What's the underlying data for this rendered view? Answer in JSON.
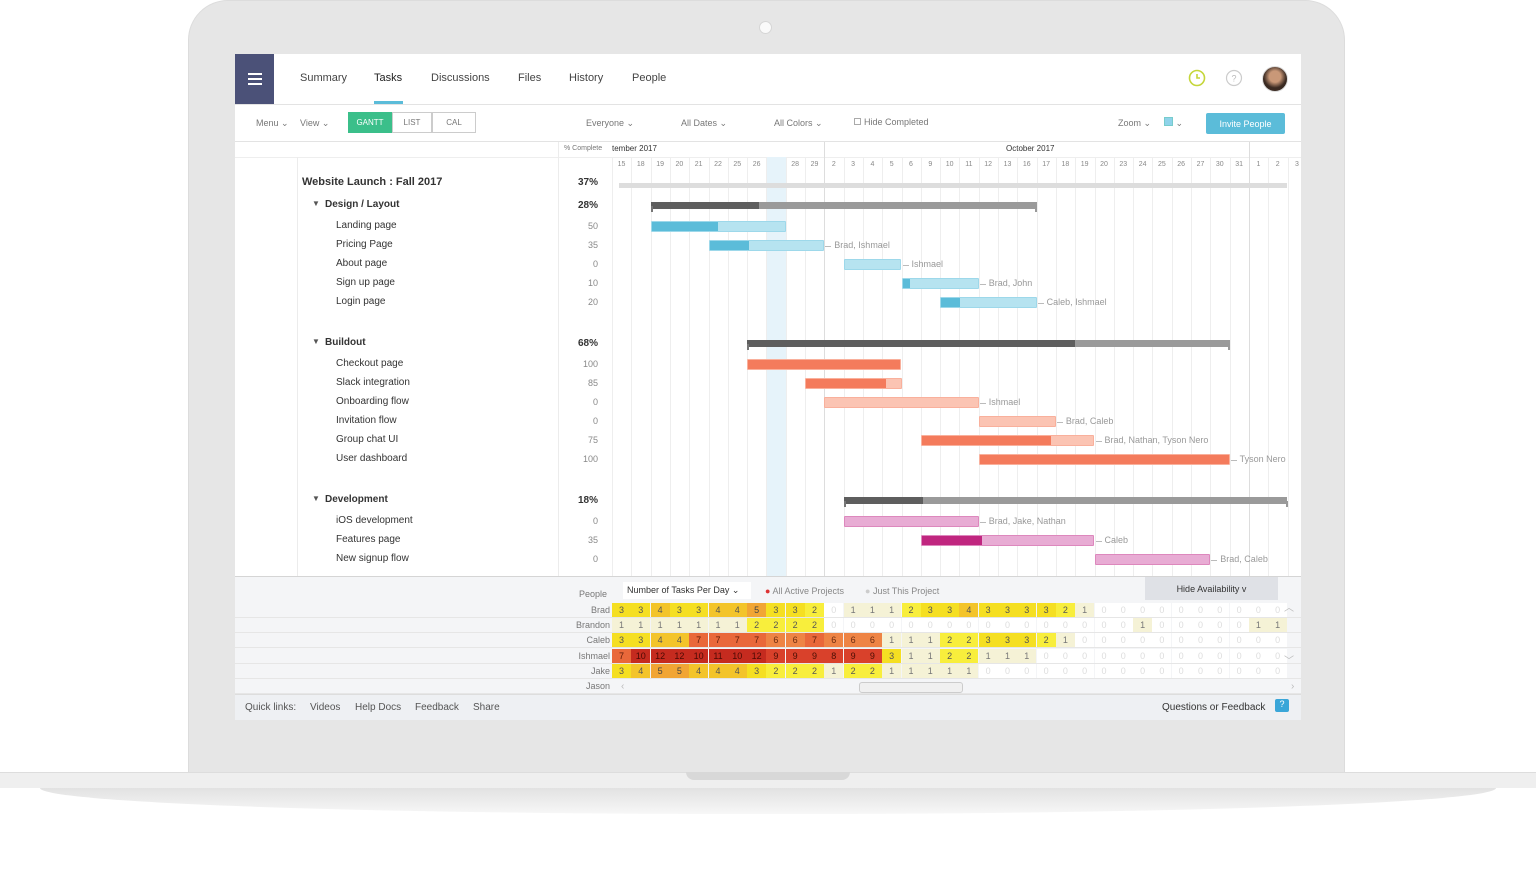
{
  "header": {
    "tabs": [
      {
        "label": "Summary"
      },
      {
        "label": "Tasks",
        "active": true
      },
      {
        "label": "Discussions"
      },
      {
        "label": "Files"
      },
      {
        "label": "History"
      },
      {
        "label": "People"
      }
    ],
    "icons": [
      "menu-icon",
      "clock-icon",
      "help-icon",
      "avatar"
    ]
  },
  "toolbar": {
    "menu": "Menu",
    "view": "View",
    "views": [
      "GANTT",
      "LIST",
      "CAL"
    ],
    "active_view": "GANTT",
    "everyone": "Everyone",
    "all_dates": "All Dates",
    "all_colors": "All Colors",
    "hide_completed": "Hide Completed",
    "zoom": "Zoom",
    "invite": "Invite People",
    "accent": "#3bbf8a",
    "invite_color": "#5bbcd9"
  },
  "timeline": {
    "pct_header": "% Complete",
    "months": [
      {
        "label": "tember 2017"
      },
      {
        "label": "October 2017"
      }
    ],
    "days": [
      "15",
      "18",
      "19",
      "20",
      "21",
      "22",
      "25",
      "26",
      "27",
      "28",
      "29",
      "2",
      "3",
      "4",
      "5",
      "6",
      "9",
      "10",
      "11",
      "12",
      "13",
      "16",
      "17",
      "18",
      "19",
      "20",
      "23",
      "24",
      "25",
      "26",
      "27",
      "30",
      "31",
      "1",
      "2",
      "3"
    ],
    "dates": [
      "2017-09-15",
      "2017-09-18",
      "2017-09-19",
      "2017-09-20",
      "2017-09-21",
      "2017-09-22",
      "2017-09-25",
      "2017-09-26",
      "2017-09-27",
      "2017-09-28",
      "2017-09-29",
      "2017-10-02",
      "2017-10-03",
      "2017-10-04",
      "2017-10-05",
      "2017-10-06",
      "2017-10-09",
      "2017-10-10",
      "2017-10-11",
      "2017-10-12",
      "2017-10-13",
      "2017-10-16",
      "2017-10-17",
      "2017-10-18",
      "2017-10-19",
      "2017-10-20",
      "2017-10-23",
      "2017-10-24",
      "2017-10-25",
      "2017-10-26",
      "2017-10-27",
      "2017-10-30",
      "2017-10-31",
      "2017-11-01",
      "2017-11-02",
      "2017-11-03"
    ],
    "today": "2017-09-27"
  },
  "project": {
    "name": "Website Launch : Fall 2017",
    "pct": "37%",
    "start": "2017-09-18",
    "end": "2017-11-02"
  },
  "groups": [
    {
      "name": "Design / Layout",
      "pct": "28%",
      "pct_value": 28,
      "start": "2017-09-19",
      "end": "2017-10-16",
      "color": "#5bbcd9",
      "light": "#b6e3f0",
      "tasks": [
        {
          "name": "Landing page",
          "pct": "50",
          "start": "2017-09-19",
          "end": "2017-09-27",
          "assignees": ""
        },
        {
          "name": "Pricing Page",
          "pct": "35",
          "start": "2017-09-22",
          "end": "2017-09-29",
          "assignees": "Brad, Ishmael"
        },
        {
          "name": "About page",
          "pct": "0",
          "start": "2017-10-03",
          "end": "2017-10-05",
          "assignees": "Ishmael"
        },
        {
          "name": "Sign up page",
          "pct": "10",
          "start": "2017-10-06",
          "end": "2017-10-11",
          "assignees": "Brad, John"
        },
        {
          "name": "Login page",
          "pct": "20",
          "start": "2017-10-10",
          "end": "2017-10-16",
          "assignees": "Caleb, Ishmael"
        }
      ]
    },
    {
      "name": "Buildout",
      "pct": "68%",
      "pct_value": 68,
      "start": "2017-09-26",
      "end": "2017-10-30",
      "color": "#f47b5c",
      "light": "#fbc4b3",
      "tasks": [
        {
          "name": "Checkout page",
          "pct": "100",
          "start": "2017-09-26",
          "end": "2017-10-05",
          "assignees": ""
        },
        {
          "name": "Slack integration",
          "pct": "85",
          "start": "2017-09-29",
          "end": "2017-10-05",
          "assignees": ""
        },
        {
          "name": "Onboarding flow",
          "pct": "0",
          "start": "2017-10-02",
          "end": "2017-10-11",
          "assignees": "Ishmael"
        },
        {
          "name": "Invitation flow",
          "pct": "0",
          "start": "2017-10-12",
          "end": "2017-10-17",
          "assignees": "Brad, Caleb"
        },
        {
          "name": "Group chat UI",
          "pct": "75",
          "start": "2017-10-09",
          "end": "2017-10-19",
          "assignees": "Brad, Nathan, Tyson Nero"
        },
        {
          "name": "User dashboard",
          "pct": "100",
          "start": "2017-10-12",
          "end": "2017-10-30",
          "assignees": "Tyson Nero"
        }
      ]
    },
    {
      "name": "Development",
      "pct": "18%",
      "pct_value": 18,
      "start": "2017-10-03",
      "end": "2017-11-02",
      "color": "#c0267f",
      "light": "#e8acd4",
      "tasks": [
        {
          "name": "iOS development",
          "pct": "0",
          "start": "2017-10-03",
          "end": "2017-10-11",
          "assignees": "Brad, Jake, Nathan"
        },
        {
          "name": "Features page",
          "pct": "35",
          "start": "2017-10-09",
          "end": "2017-10-19",
          "assignees": "Caleb"
        },
        {
          "name": "New signup flow",
          "pct": "0",
          "start": "2017-10-20",
          "end": "2017-10-27",
          "assignees": "Brad, Caleb"
        }
      ]
    }
  ],
  "availability": {
    "people_label": "People",
    "metric": "Number of Tasks Per Day",
    "all_projects": "All Active Projects",
    "this_project": "Just This Project",
    "hide": "Hide Availability v",
    "people": [
      {
        "name": "Brad",
        "values": [
          3,
          3,
          4,
          3,
          3,
          4,
          4,
          5,
          3,
          3,
          2,
          0,
          1,
          1,
          1,
          2,
          3,
          3,
          4,
          3,
          3,
          3,
          3,
          2,
          1,
          0,
          0,
          0,
          0,
          0,
          0,
          0,
          0,
          0,
          0
        ]
      },
      {
        "name": "Brandon",
        "values": [
          1,
          1,
          1,
          1,
          1,
          1,
          1,
          2,
          2,
          2,
          2,
          0,
          0,
          0,
          0,
          0,
          0,
          0,
          0,
          0,
          0,
          0,
          0,
          0,
          0,
          0,
          0,
          1,
          0,
          0,
          0,
          0,
          0,
          1,
          1
        ]
      },
      {
        "name": "Caleb",
        "values": [
          3,
          3,
          4,
          4,
          7,
          7,
          7,
          7,
          6,
          6,
          7,
          6,
          6,
          6,
          1,
          1,
          1,
          2,
          2,
          3,
          3,
          3,
          2,
          1,
          0,
          0,
          0,
          0,
          0,
          0,
          0,
          0,
          0,
          0,
          0
        ]
      },
      {
        "name": "Ishmael",
        "values": [
          7,
          10,
          12,
          12,
          10,
          11,
          10,
          12,
          9,
          9,
          9,
          8,
          9,
          9,
          3,
          1,
          1,
          2,
          2,
          1,
          1,
          1,
          0,
          0,
          0,
          0,
          0,
          0,
          0,
          0,
          0,
          0,
          0,
          0,
          0
        ]
      },
      {
        "name": "Jake",
        "values": [
          3,
          4,
          5,
          5,
          4,
          4,
          4,
          3,
          2,
          2,
          2,
          1,
          2,
          2,
          1,
          1,
          1,
          1,
          1,
          0,
          0,
          0,
          0,
          0,
          0,
          0,
          0,
          0,
          0,
          0,
          0,
          0,
          0,
          0,
          0
        ]
      },
      {
        "name": "Jason",
        "values": []
      }
    ]
  },
  "footer": {
    "quick_links": "Quick links:",
    "links": [
      "Videos",
      "Help Docs",
      "Feedback",
      "Share"
    ],
    "feedback": "Questions or Feedback"
  }
}
